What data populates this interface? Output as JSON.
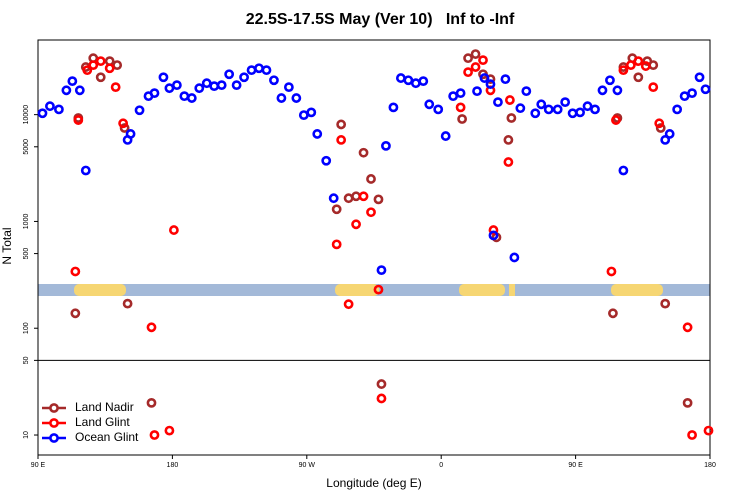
{
  "chart_data": {
    "type": "scatter",
    "title": "22.5S-17.5S May (Ver 10)   Inf to -Inf",
    "x_label": "Longitude (deg E)",
    "y_label": "N Total",
    "log_y": true,
    "hline": 50,
    "legend": "lower left",
    "xlim": [
      90,
      540
    ],
    "xticks": [
      {
        "value": 90,
        "label": "90 E"
      },
      180,
      {
        "value": 270,
        "label": "90 W"
      },
      {
        "value": 360,
        "label": "0"
      },
      {
        "value": 450,
        "label": "90 E"
      },
      {
        "value": 540,
        "label": "180"
      }
    ],
    "ylim": [
      6.5,
      50000
    ],
    "yticks": [
      10,
      50,
      100,
      500,
      1000,
      5000,
      10000
    ],
    "series": [
      {
        "name": "Land Nadir",
        "color": "#a52a2a",
        "x": [
          115,
          117,
          122,
          127,
          132,
          138,
          143,
          148,
          150,
          166,
          290,
          293,
          298,
          303,
          308,
          313,
          318,
          320,
          374,
          378,
          383,
          388,
          393,
          397,
          405,
          407,
          475,
          478,
          482,
          488,
          492,
          498,
          502,
          507,
          510,
          525
        ],
        "values": [
          138,
          9300,
          27900,
          33800,
          22400,
          31700,
          29100,
          7500,
          170,
          20,
          1300,
          8100,
          1650,
          1720,
          4400,
          2500,
          1610,
          30,
          9100,
          33800,
          36900,
          23900,
          21500,
          710,
          5800,
          9300,
          138,
          9300,
          27900,
          33800,
          22400,
          31700,
          29100,
          7500,
          170,
          20
        ]
      },
      {
        "name": "Land Glint",
        "color": "#ff0000",
        "x": [
          115,
          117,
          123,
          127,
          132,
          138,
          142,
          147,
          166,
          168,
          178,
          181,
          290,
          293,
          298,
          303,
          308,
          313,
          318,
          320,
          373,
          378,
          383,
          388,
          393,
          395,
          406,
          405,
          474,
          477,
          482,
          487,
          492,
          497,
          502,
          506,
          525,
          528,
          539
        ],
        "values": [
          340,
          8900,
          26100,
          29100,
          31700,
          27200,
          18100,
          8300,
          102,
          10,
          11,
          830,
          610,
          5800,
          168,
          940,
          1720,
          1220,
          230,
          22,
          11700,
          25000,
          27900,
          32400,
          16900,
          830,
          13700,
          3600,
          340,
          8900,
          26100,
          29100,
          31700,
          28500,
          18100,
          8300,
          102,
          10,
          11
        ]
      },
      {
        "name": "Ocean Glint",
        "color": "#0000ff",
        "x": [
          93,
          98,
          104,
          109,
          113,
          118,
          122,
          150,
          152,
          158,
          164,
          168,
          174,
          178,
          183,
          188,
          193,
          198,
          203,
          208,
          213,
          218,
          223,
          228,
          233,
          238,
          243,
          248,
          253,
          258,
          263,
          268,
          273,
          277,
          283,
          288,
          320,
          323,
          328,
          333,
          338,
          343,
          348,
          352,
          358,
          363,
          368,
          373,
          384,
          389,
          393,
          395,
          398,
          403,
          409,
          413,
          417,
          423,
          427,
          432,
          438,
          443,
          448,
          453,
          458,
          463,
          468,
          473,
          478,
          482,
          510,
          513,
          518,
          523,
          528,
          533,
          537
        ],
        "values": [
          10300,
          12000,
          11200,
          16900,
          20600,
          16900,
          3000,
          5800,
          6600,
          11000,
          14900,
          15900,
          22400,
          17700,
          18900,
          14900,
          14300,
          17700,
          19700,
          18500,
          18900,
          23900,
          18900,
          22400,
          26100,
          27200,
          26100,
          21000,
          14300,
          18100,
          14300,
          9900,
          10500,
          6600,
          3700,
          1650,
          350,
          5100,
          11700,
          22000,
          21000,
          19700,
          20600,
          12500,
          11200,
          6300,
          14900,
          15900,
          16600,
          22000,
          19300,
          740,
          13100,
          21500,
          460,
          11500,
          16600,
          10300,
          12500,
          11200,
          11200,
          13100,
          10300,
          10500,
          12000,
          11200,
          16900,
          21000,
          16900,
          3000,
          5800,
          6600,
          11200,
          14900,
          15900,
          22400,
          17300
        ]
      }
    ]
  }
}
